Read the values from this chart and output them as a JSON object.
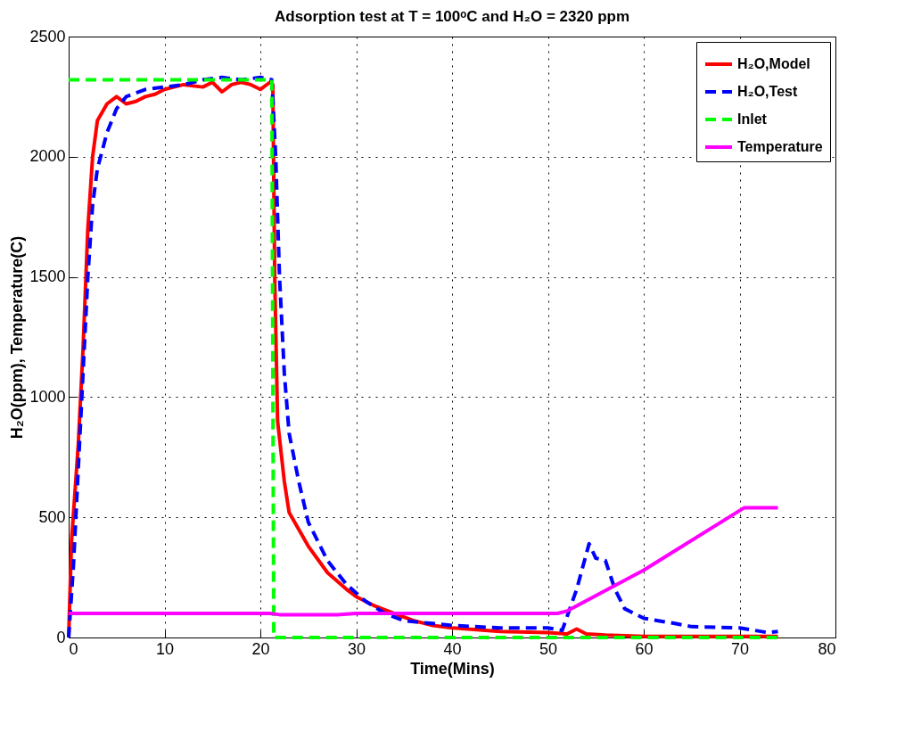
{
  "chart_data": {
    "type": "line",
    "title": "Adsorption test at T = 100ᵒC and H₂O = 2320 ppm",
    "xlabel": "Time(Mins)",
    "ylabel": "H₂O(ppm), Temperature(C)",
    "xlim": [
      0,
      80
    ],
    "xticks": [
      0,
      10,
      20,
      30,
      40,
      50,
      60,
      70,
      80
    ],
    "ylim": [
      0,
      2500
    ],
    "yticks": [
      0,
      500,
      1000,
      1500,
      2000,
      2500
    ],
    "grid": true,
    "legend": "top right",
    "series": [
      {
        "name": "H₂O,Model",
        "color": "#ff0000",
        "line_style": "solid",
        "x": [
          0,
          0.3,
          1,
          1.5,
          2,
          2.5,
          3,
          4,
          5,
          6,
          7,
          8,
          9,
          10,
          12,
          14,
          15,
          16,
          17,
          18,
          19,
          20,
          21,
          21.3,
          21.5,
          21.8,
          22.5,
          23,
          25,
          27,
          29,
          30,
          32,
          34,
          36,
          38,
          40,
          45,
          50,
          52,
          53,
          54,
          56,
          60,
          65,
          70,
          74
        ],
        "values": [
          0,
          400,
          800,
          1200,
          1700,
          2000,
          2150,
          2220,
          2250,
          2220,
          2230,
          2250,
          2260,
          2280,
          2300,
          2290,
          2310,
          2270,
          2300,
          2310,
          2300,
          2280,
          2310,
          2300,
          1500,
          900,
          650,
          520,
          380,
          270,
          200,
          170,
          130,
          100,
          70,
          50,
          40,
          25,
          20,
          15,
          35,
          15,
          10,
          5,
          5,
          5,
          5
        ]
      },
      {
        "name": "H₂O,Test",
        "color": "#0000ff",
        "line_style": "dashed",
        "x": [
          0,
          0.5,
          1,
          1.5,
          2,
          2.5,
          3,
          4,
          5,
          6,
          8,
          10,
          12,
          14,
          16,
          18,
          20,
          21.2,
          21.6,
          22,
          22.5,
          23,
          24,
          25,
          27,
          29,
          31,
          33,
          35,
          40,
          45,
          50,
          51.5,
          53,
          54.3,
          55,
          56,
          57,
          58,
          60,
          63,
          65,
          70,
          73,
          74
        ],
        "values": [
          0,
          300,
          700,
          1100,
          1500,
          1800,
          1950,
          2100,
          2200,
          2250,
          2280,
          2290,
          2300,
          2320,
          2330,
          2320,
          2330,
          2320,
          2000,
          1500,
          1100,
          850,
          650,
          480,
          320,
          220,
          150,
          100,
          70,
          50,
          40,
          40,
          30,
          200,
          390,
          330,
          320,
          200,
          120,
          80,
          60,
          45,
          40,
          20,
          25
        ]
      },
      {
        "name": "Inlet",
        "color": "#00ff00",
        "line_style": "dashed",
        "x": [
          0,
          21.2,
          21.4,
          74
        ],
        "values": [
          2320,
          2320,
          0,
          0
        ]
      },
      {
        "name": "Temperature",
        "color": "#ff00ff",
        "line_style": "solid",
        "x": [
          0,
          21,
          22,
          28,
          30,
          51,
          52,
          60,
          70.5,
          74
        ],
        "values": [
          100,
          100,
          95,
          95,
          100,
          100,
          110,
          280,
          540,
          540
        ]
      }
    ]
  }
}
